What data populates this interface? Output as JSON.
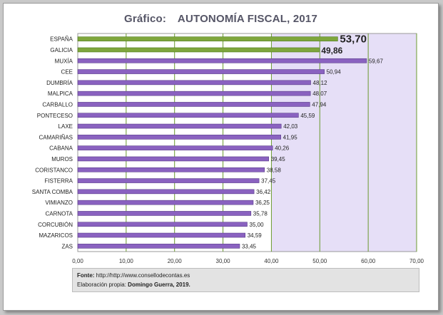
{
  "title_prefix": "Gráfico:",
  "title": "AUTONOMÍA FISCAL, 2017",
  "source_label": "Fonte:",
  "source_text": "http://http://www.consellodecontas.es",
  "credit_label": "Elaboración propia:",
  "credit_name": "Domingo Guerra, 2019.",
  "chart_data": {
    "type": "bar",
    "orientation": "horizontal",
    "categories": [
      "ESPAÑA",
      "GALICIA",
      "MUXÍA",
      "CEE",
      "DUMBRÍA",
      "MALPICA",
      "CARBALLO",
      "PONTECESO",
      "LAXE",
      "CAMARIÑAS",
      "CABANA",
      "MUROS",
      "CORISTANCO",
      "FISTERRA",
      "SANTA COMBA",
      "VIMIANZO",
      "CARNOTA",
      "CORCUBIÓN",
      "MAZARICOS",
      "ZAS"
    ],
    "values": [
      53.7,
      49.86,
      59.67,
      50.94,
      48.12,
      48.07,
      47.94,
      45.59,
      42.03,
      41.95,
      40.26,
      39.45,
      38.58,
      37.45,
      36.42,
      36.25,
      35.78,
      35.0,
      34.59,
      33.45
    ],
    "value_labels": [
      "53,70",
      "49,86",
      "59,67",
      "50,94",
      "48,12",
      "48,07",
      "47,94",
      "45,59",
      "42,03",
      "41,95",
      "40,26",
      "39,45",
      "38,58",
      "37,45",
      "36,42",
      "36,25",
      "35,78",
      "35,00",
      "34,59",
      "33,45"
    ],
    "highlight_categories": [
      "ESPAÑA",
      "GALICIA"
    ],
    "xlim": [
      0,
      70
    ],
    "xticks": [
      0,
      10,
      20,
      30,
      40,
      50,
      60,
      70
    ],
    "xtick_labels": [
      "0,00",
      "10,00",
      "20,00",
      "30,00",
      "40,00",
      "50,00",
      "60,00",
      "70,00"
    ],
    "shaded_range": [
      40,
      70
    ],
    "grid": true,
    "colors": {
      "regular": "#8a62c0",
      "highlight": "#7ea63c",
      "shade": "#e6dff7",
      "grid": "#6a9a2e"
    }
  }
}
